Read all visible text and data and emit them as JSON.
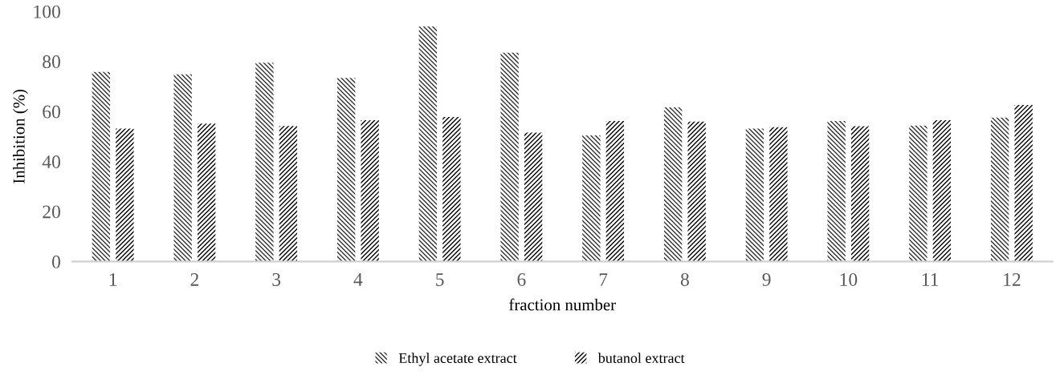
{
  "chart_data": {
    "type": "bar",
    "xlabel": "fraction number",
    "ylabel": "Inhibition (%)",
    "categories": [
      "1",
      "2",
      "3",
      "4",
      "5",
      "6",
      "7",
      "8",
      "9",
      "10",
      "11",
      "12"
    ],
    "series": [
      {
        "name": "Ethyl acetate extract",
        "color": "#303030",
        "values": [
          75.8,
          74.8,
          79.5,
          73.4,
          94,
          83.5,
          50.4,
          61.6,
          53.1,
          56.2,
          54.3,
          57.5
        ]
      },
      {
        "name": "butanol extract",
        "color": "#000000",
        "values": [
          53.1,
          55.1,
          54.2,
          56.5,
          57.8,
          51.5,
          56.2,
          55.9,
          53.7,
          54.1,
          56.5,
          62.6
        ]
      }
    ],
    "ylim": [
      0,
      100
    ],
    "yticks": [
      0,
      20,
      40,
      60,
      80,
      100
    ],
    "grid": false,
    "legend": "bottom"
  }
}
